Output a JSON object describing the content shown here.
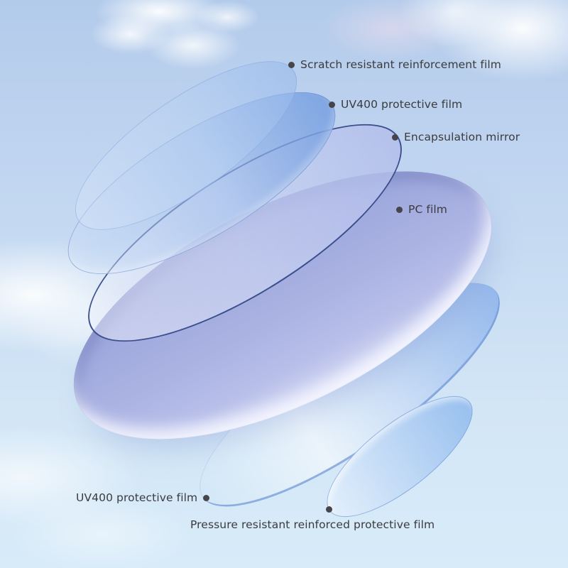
{
  "diagram": {
    "description": "Exploded diagram of sunglasses lens layer structure on a sky background",
    "labels": [
      {
        "id": "scratch-film",
        "text": "Scratch resistant reinforcement film"
      },
      {
        "id": "uv400-film-top",
        "text": "UV400 protective film"
      },
      {
        "id": "encapsulation-mirror",
        "text": "Encapsulation mirror"
      },
      {
        "id": "pc-film",
        "text": "PC film"
      },
      {
        "id": "uv400-film-bottom",
        "text": "UV400 protective film"
      },
      {
        "id": "pressure-film",
        "text": "Pressure resistant reinforced protective film"
      }
    ],
    "layers": [
      {
        "name": "Scratch resistant reinforcement film",
        "color": "#bcd3f1"
      },
      {
        "name": "UV400 protective film",
        "color": "#7ea6de"
      },
      {
        "name": "Encapsulation mirror",
        "color": "#b2bdea",
        "rim_color": "#283d80"
      },
      {
        "name": "PC film",
        "color": "#a9b1e2",
        "rim_color": "#dde1f7"
      },
      {
        "name": "UV400 protective film",
        "color": "#e4eefa",
        "rim_color": "#7499d9"
      },
      {
        "name": "Pressure resistant reinforced protective film",
        "color": "#a5c6ef"
      }
    ],
    "colors": {
      "text": "#3b3b3f",
      "bullet": "#45454a",
      "sky_top": "#b3cbeb",
      "sky_bottom": "#d7ebf9",
      "cloud": "#ffffff"
    }
  }
}
